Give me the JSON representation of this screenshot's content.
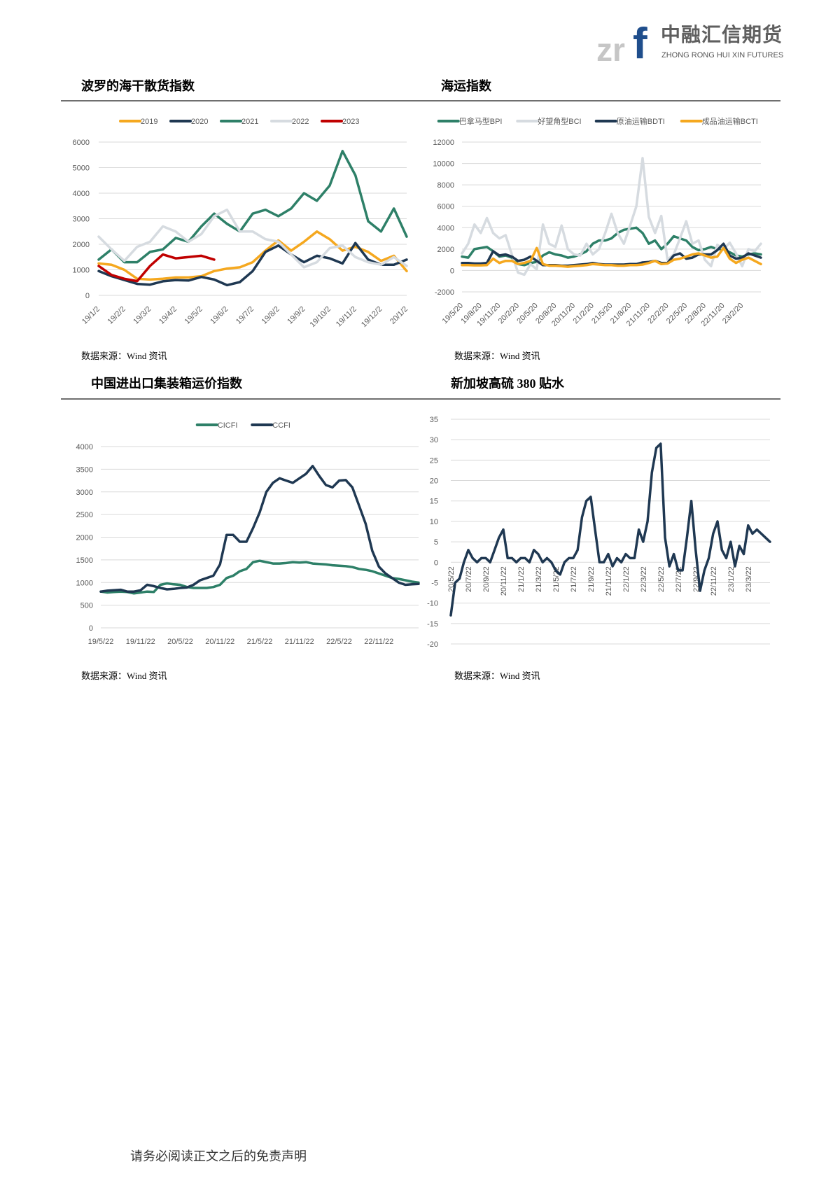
{
  "logo": {
    "mark_zr": "zr",
    "mark_f": "f",
    "cn": "中融汇信期货",
    "en": "ZHONG RONG HUI XIN FUTURES"
  },
  "sections": {
    "bdi_title": "波罗的海干散货指数",
    "shipping_title": "海运指数",
    "container_title": "中国进出口集装箱运价指数",
    "singapore_title": "新加坡高硫 380 贴水"
  },
  "source_text": "数据来源：Wind 资讯",
  "footer": "请务必阅读正文之后的免责声明",
  "chart_data": [
    {
      "type": "line",
      "title": "波罗的海干散货指数",
      "x_ticks": [
        "19/1/2",
        "19/2/2",
        "19/3/2",
        "19/4/2",
        "19/5/2",
        "19/6/2",
        "19/7/2",
        "19/8/2",
        "19/9/2",
        "19/10/2",
        "19/11/2",
        "19/12/2",
        "20/1/2"
      ],
      "x_range": [
        "19/1/2",
        "20/1/2"
      ],
      "y_ticks": [
        "0",
        "1000",
        "2000",
        "3000",
        "4000",
        "5000",
        "6000"
      ],
      "ylim": [
        0,
        6000
      ],
      "grid": true,
      "legend": "top",
      "sampling": "semi-monthly",
      "series": [
        {
          "name": "2019",
          "color": "#f5a81f",
          "values": [
            1250,
            1200,
            1000,
            650,
            620,
            650,
            700,
            700,
            750,
            950,
            1050,
            1100,
            1300,
            1750,
            2150,
            1750,
            2100,
            2500,
            2200,
            1750,
            1900,
            1700,
            1350,
            1550,
            950
          ]
        },
        {
          "name": "2020",
          "color": "#1f3852",
          "values": [
            950,
            750,
            600,
            450,
            420,
            550,
            600,
            580,
            720,
            620,
            400,
            520,
            950,
            1700,
            1950,
            1600,
            1300,
            1550,
            1450,
            1250,
            2050,
            1400,
            1200,
            1200,
            1400
          ]
        },
        {
          "name": "2021",
          "color": "#2e8068",
          "values": [
            1400,
            1800,
            1300,
            1300,
            1700,
            1800,
            2250,
            2100,
            2700,
            3200,
            2800,
            2500,
            3200,
            3350,
            3100,
            3400,
            4000,
            3700,
            4300,
            5650,
            4700,
            2900,
            2500,
            3400,
            2300
          ]
        },
        {
          "name": "2022",
          "color": "#d6dbe0",
          "values": [
            2300,
            1800,
            1350,
            1900,
            2100,
            2700,
            2500,
            2100,
            2400,
            3100,
            3350,
            2500,
            2500,
            2200,
            2100,
            1600,
            1100,
            1300,
            1850,
            1950,
            1500,
            1300,
            1200,
            1500,
            1150
          ]
        },
        {
          "name": "2023",
          "color": "#c00000",
          "values": [
            1150,
            800,
            650,
            560,
            1150,
            1600,
            1450,
            1500,
            1550,
            1400
          ]
        }
      ]
    },
    {
      "type": "line",
      "title": "海运指数",
      "x_ticks": [
        "19/5/20",
        "19/8/20",
        "19/11/20",
        "20/2/20",
        "20/5/20",
        "20/8/20",
        "20/11/20",
        "21/2/20",
        "21/5/20",
        "21/8/20",
        "21/11/20",
        "22/2/20",
        "22/5/20",
        "22/8/20",
        "22/11/20",
        "23/2/20"
      ],
      "x_range": [
        "19/5/20",
        "23/5/20"
      ],
      "y_ticks": [
        "-2000",
        "0",
        "2000",
        "4000",
        "6000",
        "8000",
        "10000",
        "12000"
      ],
      "ylim": [
        -2000,
        12000
      ],
      "grid": true,
      "legend": "top",
      "sampling": "monthly",
      "series": [
        {
          "name": "巴拿马型BPI",
          "color": "#2e8068",
          "values": [
            1300,
            1200,
            2000,
            2100,
            2200,
            1800,
            1300,
            1400,
            1200,
            600,
            500,
            700,
            800,
            1400,
            1700,
            1500,
            1400,
            1200,
            1300,
            1500,
            1800,
            2500,
            2800,
            2800,
            3000,
            3500,
            3800,
            3900,
            4000,
            3500,
            2500,
            2800,
            2000,
            2500,
            3200,
            3000,
            2800,
            2200,
            1900,
            2000,
            2200,
            2000,
            2000,
            1700,
            1400,
            1300,
            1500,
            1600,
            1500
          ]
        },
        {
          "name": "好望角型BCI",
          "color": "#d6dbe0",
          "values": [
            1600,
            2500,
            4300,
            3500,
            4900,
            3500,
            3000,
            3300,
            1500,
            -200,
            -400,
            600,
            100,
            4300,
            2500,
            2200,
            4200,
            2000,
            1500,
            1400,
            2500,
            1500,
            2000,
            3500,
            5300,
            3500,
            2500,
            4200,
            6000,
            10500,
            5000,
            3500,
            5100,
            1000,
            1500,
            3000,
            4600,
            2500,
            2800,
            1000,
            400,
            2400,
            2000,
            2600,
            1600,
            400,
            2000,
            1800,
            2500
          ]
        },
        {
          "name": "原油运输BDTI",
          "color": "#1f3852",
          "values": [
            700,
            700,
            650,
            650,
            700,
            1800,
            1400,
            1500,
            1300,
            900,
            1000,
            1300,
            900,
            500,
            500,
            500,
            450,
            450,
            500,
            550,
            600,
            700,
            600,
            550,
            550,
            550,
            550,
            600,
            600,
            750,
            800,
            900,
            700,
            700,
            1400,
            1600,
            1100,
            1200,
            1500,
            1500,
            1500,
            1900,
            2500,
            1400,
            1100,
            1200,
            1600,
            1400,
            1200
          ]
        },
        {
          "name": "成品油运输BCTI",
          "color": "#f5a81f",
          "values": [
            500,
            500,
            480,
            480,
            500,
            1100,
            700,
            900,
            900,
            600,
            700,
            900,
            2100,
            600,
            450,
            450,
            400,
            350,
            400,
            450,
            500,
            600,
            550,
            500,
            500,
            450,
            450,
            500,
            500,
            550,
            700,
            900,
            600,
            650,
            1000,
            1100,
            1300,
            1500,
            1600,
            1400,
            1200,
            1300,
            2100,
            1100,
            700,
            1000,
            1200,
            900,
            600
          ]
        }
      ]
    },
    {
      "type": "line",
      "title": "中国进出口集装箱运价指数",
      "x_ticks": [
        "19/5/22",
        "19/11/22",
        "20/5/22",
        "20/11/22",
        "21/5/22",
        "21/11/22",
        "22/5/22",
        "22/11/22"
      ],
      "x_range": [
        "19/5/22",
        "23/5/22"
      ],
      "y_ticks": [
        "0",
        "500",
        "1000",
        "1500",
        "2000",
        "2500",
        "3000",
        "3500",
        "4000"
      ],
      "ylim": [
        0,
        4000
      ],
      "grid": true,
      "legend": "top",
      "sampling": "monthly",
      "series": [
        {
          "name": "CICFI",
          "color": "#2e8068",
          "values": [
            800,
            780,
            790,
            800,
            790,
            760,
            780,
            800,
            790,
            950,
            980,
            960,
            950,
            900,
            880,
            880,
            880,
            900,
            950,
            1100,
            1150,
            1250,
            1300,
            1450,
            1480,
            1450,
            1420,
            1420,
            1430,
            1450,
            1440,
            1450,
            1420,
            1410,
            1400,
            1380,
            1370,
            1360,
            1340,
            1300,
            1280,
            1250,
            1200,
            1150,
            1100,
            1080,
            1050,
            1020,
            1000
          ]
        },
        {
          "name": "CCFI",
          "color": "#1f3852",
          "values": [
            800,
            820,
            830,
            840,
            800,
            800,
            830,
            950,
            920,
            880,
            850,
            860,
            880,
            890,
            950,
            1050,
            1100,
            1150,
            1400,
            2050,
            2050,
            1900,
            1900,
            2200,
            2550,
            3000,
            3200,
            3300,
            3250,
            3200,
            3300,
            3400,
            3570,
            3350,
            3150,
            3100,
            3250,
            3260,
            3100,
            2700,
            2300,
            1700,
            1350,
            1200,
            1100,
            1000,
            950,
            960,
            970
          ]
        }
      ]
    },
    {
      "type": "line",
      "title": "新加坡高硫 380 贴水",
      "x_ticks": [
        "20/5/22",
        "20/7/22",
        "20/9/22",
        "20/11/22",
        "21/1/22",
        "21/3/22",
        "21/5/22",
        "21/7/22",
        "21/9/22",
        "21/11/22",
        "22/1/22",
        "22/3/22",
        "22/5/22",
        "22/7/22",
        "22/9/22",
        "22/11/22",
        "23/1/22",
        "23/3/22"
      ],
      "x_range": [
        "20/5/22",
        "23/5/22"
      ],
      "y_ticks": [
        "-20",
        "-15",
        "-10",
        "-5",
        "0",
        "5",
        "10",
        "15",
        "20",
        "25",
        "30",
        "35"
      ],
      "ylim": [
        -20,
        35
      ],
      "grid": true,
      "legend": "none",
      "sampling": "semi-monthly",
      "series": [
        {
          "color": "#1f3852",
          "values": [
            -13,
            -5,
            -4,
            0,
            3,
            1,
            0,
            1,
            1,
            0,
            3,
            6,
            8,
            1,
            1,
            0,
            1,
            1,
            0,
            3,
            2,
            0,
            1,
            0,
            -2,
            -3,
            0,
            1,
            1,
            3,
            11,
            15,
            16,
            8,
            0,
            0,
            2,
            -1,
            1,
            0,
            2,
            1,
            1,
            8,
            5,
            10,
            22,
            28,
            29,
            6,
            -1,
            2,
            -2,
            -2,
            6,
            15,
            3,
            -7,
            -2,
            1,
            7,
            10,
            3,
            1,
            5,
            -1,
            4,
            2,
            9,
            7,
            8,
            7,
            6,
            5
          ]
        }
      ]
    }
  ]
}
